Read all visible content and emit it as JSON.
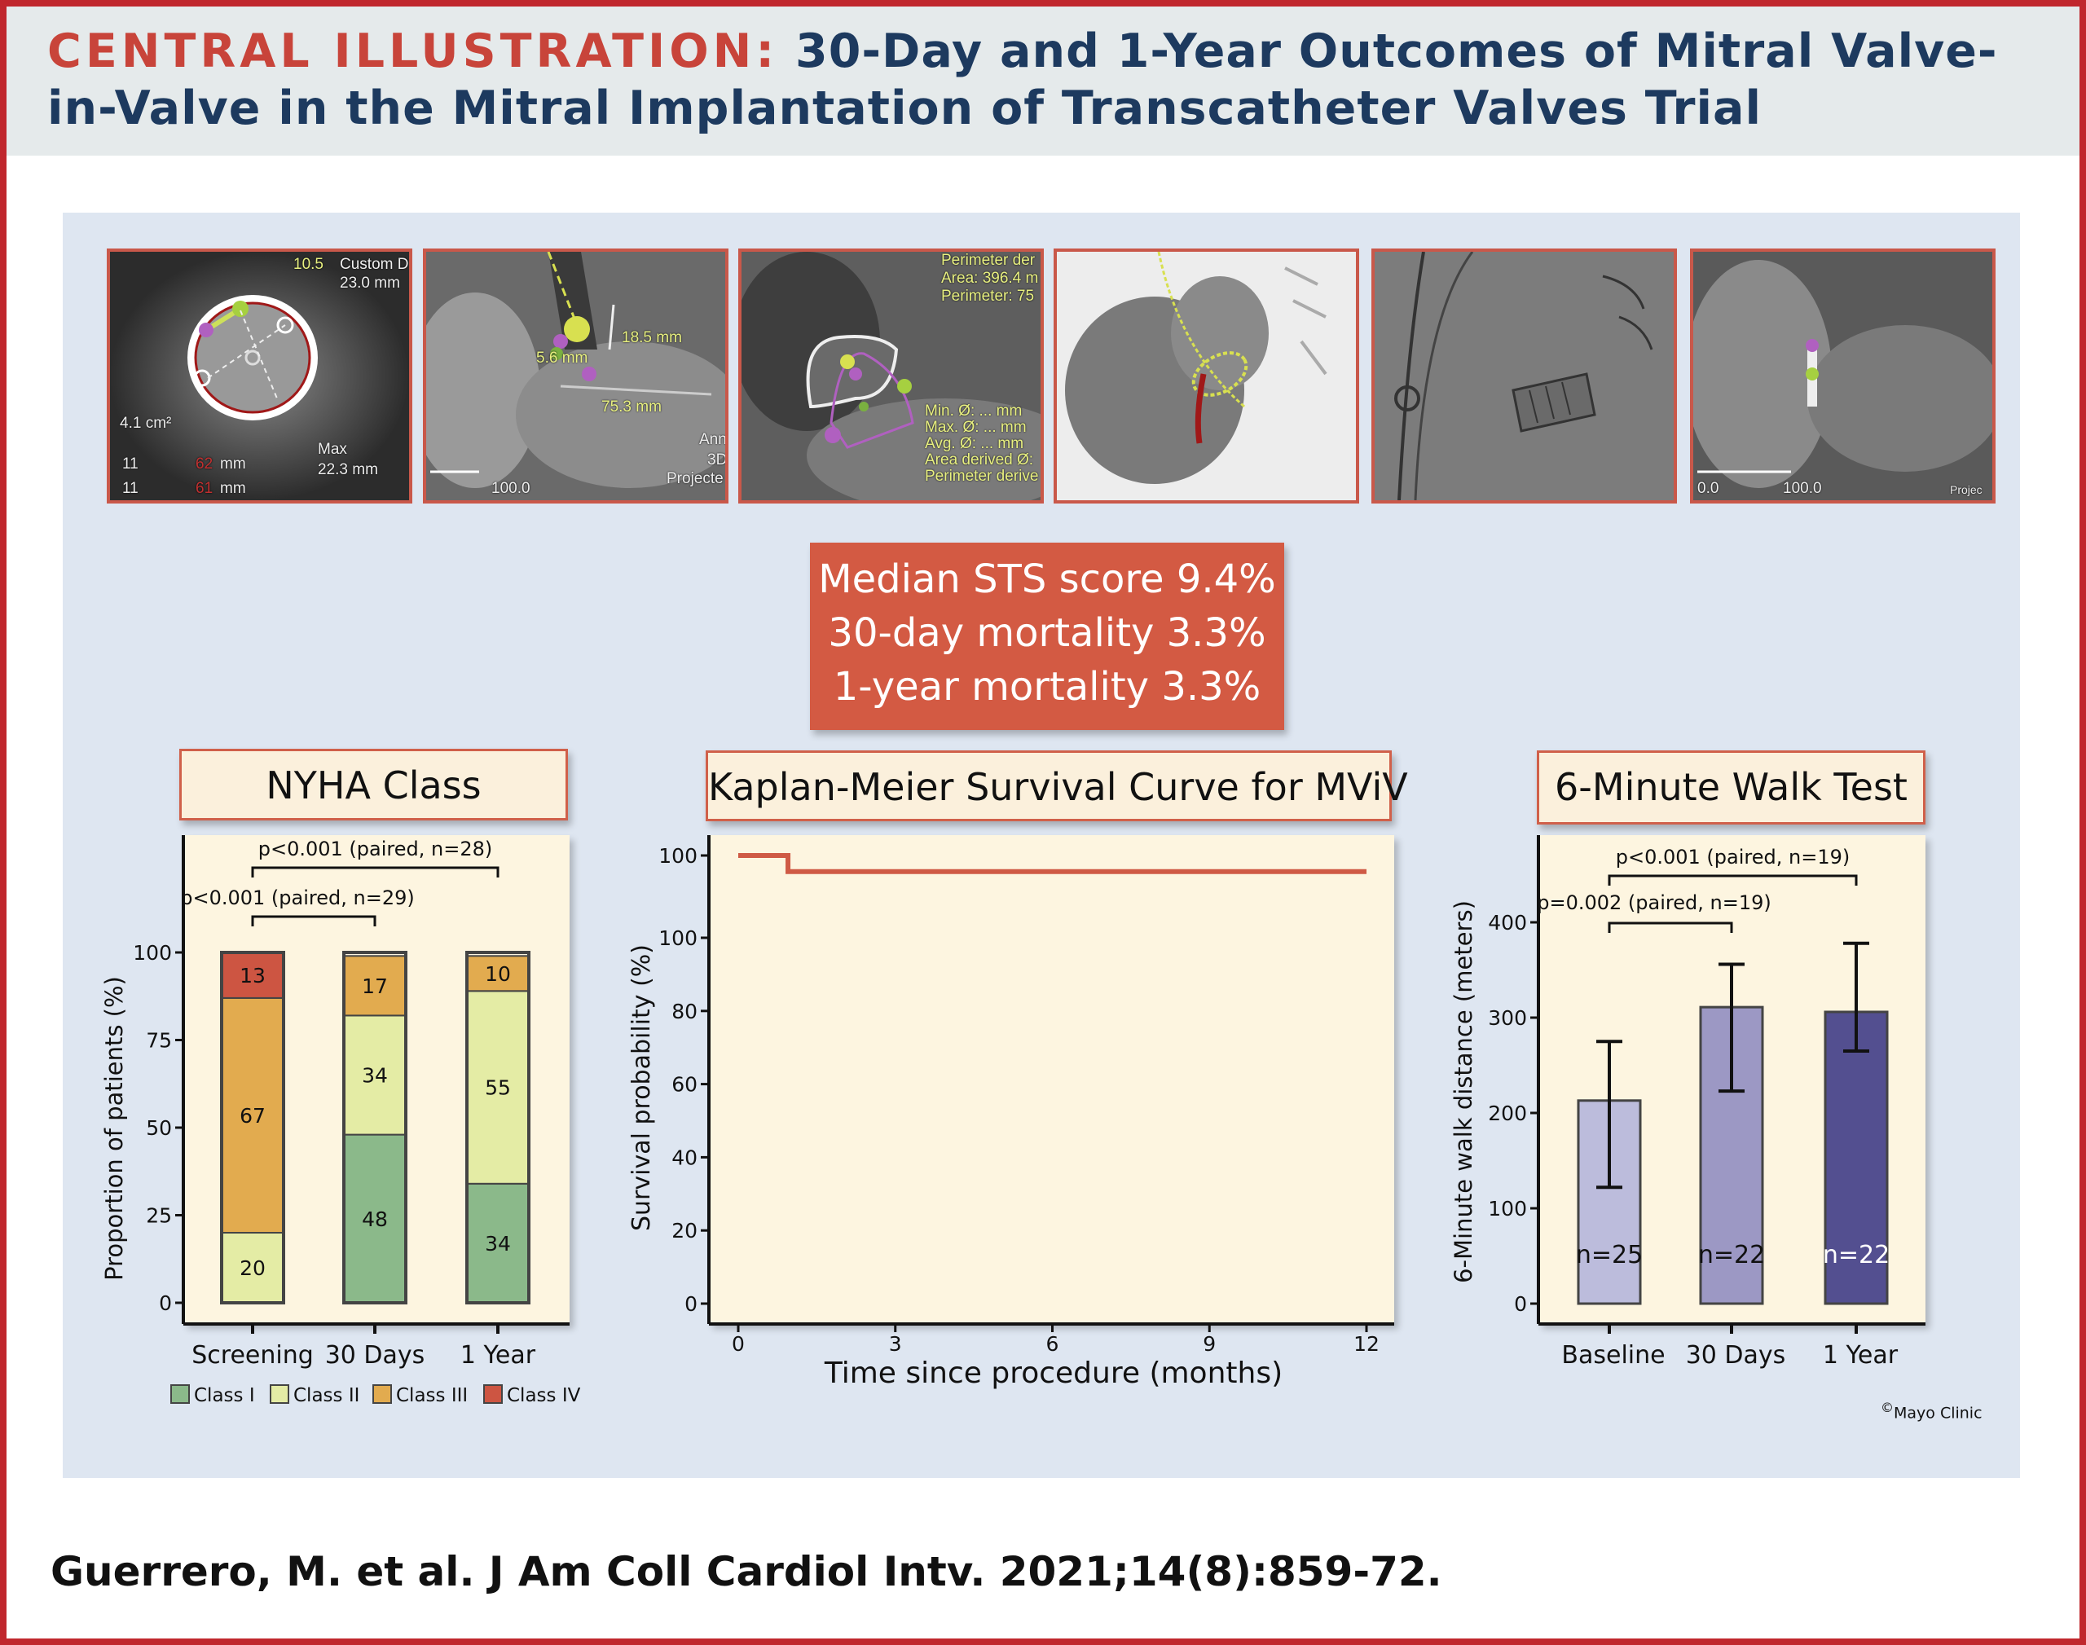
{
  "header": {
    "title_lead": "CENTRAL ILLUSTRATION:",
    "title_rest": " 30-Day and 1-Year Outcomes of Mitral Valve-in-Valve in the Mitral Implantation of Transcatheter Valves Trial"
  },
  "images": [
    {
      "kind": "ct-short-axis",
      "labels": [
        "10.5",
        "Custom D",
        "23.0 mm",
        "4.1 cm²",
        "11",
        "62",
        "mm",
        "11",
        "61",
        "mm",
        "Max",
        "22.3 mm"
      ]
    },
    {
      "kind": "ct-long-axis",
      "labels": [
        "18.5 mm",
        "5.6 mm",
        "75.3 mm",
        "100.0",
        "Ann",
        "3D",
        "Projecte"
      ]
    },
    {
      "kind": "ct-neo-lvot",
      "labels": [
        "Perimeter der",
        "Area: 396.4 m",
        "Perimeter: 75",
        "Min. Ø: ... mm",
        "Max. Ø: ... mm",
        "Avg. Ø: ... mm",
        "Area derived Ø:",
        "Perimeter derive"
      ]
    },
    {
      "kind": "fluoroscopy-overlay",
      "labels": []
    },
    {
      "kind": "fluoroscopy-valve",
      "labels": []
    },
    {
      "kind": "ct-post-implant",
      "labels": [
        "0.0",
        "100.0",
        "Projec"
      ]
    }
  ],
  "stats": {
    "line1": "Median STS score 9.4%",
    "line2": "30-day mortality 3.3%",
    "line3": "1-year mortality 3.3%"
  },
  "colors": {
    "class_i": "#8bb98a",
    "class_ii": "#e4eca5",
    "class_iii": "#e2ab4f",
    "class_iv": "#cd5542",
    "km_line": "#cf5a45",
    "walk": [
      "#bcbcdc",
      "#9c98c4",
      "#534f90"
    ]
  },
  "chart_data": [
    {
      "type": "bar",
      "stacked": true,
      "title": "NYHA Class",
      "ylabel": "Proportion of patients (%)",
      "xlabel": "",
      "ylim": [
        0,
        100
      ],
      "yticks": [
        "0",
        "25",
        "50",
        "75",
        "100"
      ],
      "categories": [
        "Screening",
        "30 Days",
        "1 Year"
      ],
      "series": [
        {
          "name": "Class I",
          "values": [
            0,
            48,
            34
          ]
        },
        {
          "name": "Class II",
          "values": [
            20,
            34,
            55
          ]
        },
        {
          "name": "Class III",
          "values": [
            67,
            17,
            10
          ]
        },
        {
          "name": "Class IV",
          "values": [
            13,
            0,
            0
          ]
        }
      ],
      "legend": [
        "Class I",
        "Class II",
        "Class III",
        "Class IV"
      ],
      "legend_position": "bottom",
      "comparisons": [
        {
          "from": 0,
          "to": 2,
          "label": "p<0.001 (paired, n=28)"
        },
        {
          "from": 0,
          "to": 1,
          "label": "p<0.001 (paired, n=29)"
        }
      ]
    },
    {
      "type": "line",
      "step": true,
      "title": "Kaplan-Meier Survival Curve for MViV",
      "xlabel": "Time since procedure (months)",
      "ylabel": "Survival probability (%)",
      "xlim": [
        0,
        12
      ],
      "ylim": [
        0,
        100
      ],
      "xticks": [
        "0",
        "3",
        "6",
        "9",
        "12"
      ],
      "yticks": [
        "0",
        "20",
        "40",
        "60",
        "80",
        "100",
        "100"
      ],
      "x": [
        0,
        0.95,
        12
      ],
      "y": [
        100,
        96.7,
        96.7
      ]
    },
    {
      "type": "bar",
      "title": "6-Minute Walk Test",
      "ylabel": "6-Minute walk distance (meters)",
      "xlabel": "",
      "ylim": [
        0,
        400
      ],
      "yticks": [
        "0",
        "100",
        "200",
        "300",
        "400"
      ],
      "categories": [
        "Baseline",
        "30 Days",
        "1 Year"
      ],
      "values": [
        213,
        311,
        306
      ],
      "error_low": [
        122,
        223,
        265
      ],
      "error_high": [
        275,
        356,
        378
      ],
      "n_labels": [
        "n=25",
        "n=22",
        "n=22"
      ],
      "comparisons": [
        {
          "from": 0,
          "to": 2,
          "label": "p<0.001 (paired, n=19)"
        },
        {
          "from": 0,
          "to": 1,
          "label": "p=0.002 (paired, n=19)"
        }
      ]
    }
  ],
  "credit": {
    "symbol": "©",
    "text": "Mayo Clinic"
  },
  "citation": "Guerrero, M. et al. J Am Coll Cardiol Intv. 2021;14(8):859-72."
}
